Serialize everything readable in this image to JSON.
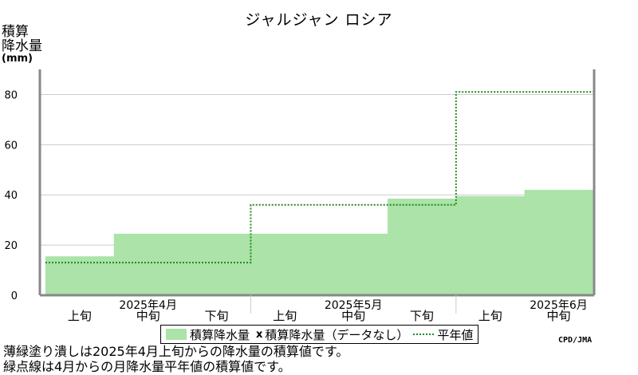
{
  "chart_data": {
    "type": "bar",
    "title": "ジャルジャン ロシア",
    "ylabel": [
      "積算",
      "降水量"
    ],
    "yunit": "(mm)",
    "ylim": [
      0,
      90
    ],
    "yticks": [
      0,
      20,
      40,
      60,
      80
    ],
    "grid": true,
    "periods": [
      {
        "label": "上旬",
        "month": "2025年4月"
      },
      {
        "label": "中旬",
        "month": "2025年4月"
      },
      {
        "label": "下旬",
        "month": "2025年4月"
      },
      {
        "label": "上旬",
        "month": "2025年5月"
      },
      {
        "label": "中旬",
        "month": "2025年5月"
      },
      {
        "label": "下旬",
        "month": "2025年5月"
      },
      {
        "label": "上旬",
        "month": "2025年6月"
      },
      {
        "label": "中旬",
        "month": "2025年6月"
      }
    ],
    "months": [
      "2025年4月",
      "2025年5月",
      "2025年6月"
    ],
    "series": [
      {
        "name": "積算降水量",
        "values": [
          15.5,
          24.5,
          24.5,
          24.5,
          24.5,
          38.5,
          39.5,
          42.0
        ],
        "color": "#abe3a8"
      },
      {
        "name": "積算降水量（データなし）",
        "values": [],
        "marker": "x"
      },
      {
        "name": "平年値",
        "steps": [
          {
            "month": "2025年4月",
            "value": 13
          },
          {
            "month": "2025年5月",
            "value": 36
          },
          {
            "month": "2025年6月",
            "value": 81
          }
        ],
        "color": "#1e8a1e"
      }
    ],
    "legend_position": "bottom"
  },
  "legend": {
    "filled_label": "積算降水量",
    "nodata_marker": "x",
    "nodata_label": "積算降水量（データなし）",
    "normal_label": "平年値"
  },
  "source": "CPD/JMA",
  "notes": [
    "薄緑塗り潰しは2025年4月上旬からの降水量の積算値です。",
    "緑点線は4月からの月降水量平年値の積算値です。"
  ]
}
